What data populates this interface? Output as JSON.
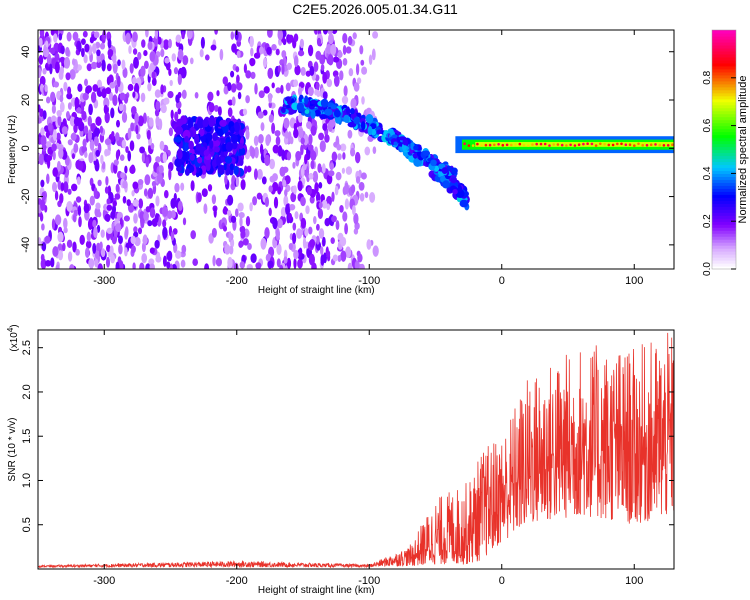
{
  "title": "C2E5.2026.005.01.34.G11",
  "chart_data": [
    {
      "type": "heatmap",
      "title": "C2E5.2026.005.01.34.G11",
      "xlabel": "Height of straight line (km)",
      "ylabel": "Frequency (Hz)",
      "xlim": [
        -350,
        130
      ],
      "ylim": [
        -50,
        49
      ],
      "xticks": [
        -300,
        -200,
        -100,
        0,
        100
      ],
      "yticks": [
        -40,
        -20,
        0,
        20,
        40
      ],
      "colorbar": {
        "label": "Normalized spectral amplitude",
        "range": [
          0.0,
          1.0
        ],
        "ticks": [
          "0.0",
          "0.2",
          "0.4",
          "0.6",
          "0.8"
        ],
        "tick_values": [
          0.0,
          0.2,
          0.4,
          0.6,
          0.8
        ],
        "colormap": "rainbow (white - violet - blue - cyan - green - yellow - red - magenta)"
      },
      "features": [
        {
          "name": "background noise",
          "x": [
            -350,
            -95
          ],
          "freq": [
            -50,
            49
          ],
          "amplitude": 0.15
        },
        {
          "name": "noise cluster",
          "x": [
            -245,
            -195
          ],
          "freq": [
            -10,
            12
          ],
          "amplitude": 0.3
        },
        {
          "name": "descending trace",
          "x": [
            -165,
            -25
          ],
          "freq_start": 18,
          "freq_end": -25,
          "amplitude": 0.45
        },
        {
          "name": "carrier line",
          "x": [
            -35,
            130
          ],
          "freq": 1.5,
          "amplitude": 0.9
        }
      ]
    },
    {
      "type": "line",
      "xlabel": "Height of straight line (km)",
      "ylabel": "SNR (10 * v/v)",
      "yscale_label": "(x10",
      "yscale_exponent": "4",
      "xlim": [
        -350,
        130
      ],
      "ylim": [
        0,
        2.7
      ],
      "xticks": [
        -300,
        -200,
        -100,
        0,
        100
      ],
      "yticks": [
        "0.5",
        "1.0",
        "1.5",
        "2.0",
        "2.5"
      ],
      "ytick_values": [
        0.5,
        1.0,
        1.5,
        2.0,
        2.5
      ],
      "series": [
        {
          "name": "SNR",
          "color": "#e8322a",
          "envelope": [
            {
              "x": -350,
              "low": 0.02,
              "high": 0.04
            },
            {
              "x": -200,
              "low": 0.02,
              "high": 0.09
            },
            {
              "x": -100,
              "low": 0.02,
              "high": 0.05
            },
            {
              "x": -70,
              "low": 0.03,
              "high": 0.25
            },
            {
              "x": -50,
              "low": 0.05,
              "high": 0.8
            },
            {
              "x": -25,
              "low": 0.05,
              "high": 1.0
            },
            {
              "x": -15,
              "low": 0.1,
              "high": 1.35
            },
            {
              "x": 0,
              "low": 0.3,
              "high": 1.55
            },
            {
              "x": 20,
              "low": 0.5,
              "high": 2.2
            },
            {
              "x": 60,
              "low": 0.6,
              "high": 2.55
            },
            {
              "x": 100,
              "low": 0.5,
              "high": 2.5
            },
            {
              "x": 130,
              "low": 0.6,
              "high": 2.7
            }
          ]
        }
      ]
    }
  ],
  "colors": {
    "snr_line": "#e8322a",
    "axis": "#000000",
    "text": "#000000"
  }
}
